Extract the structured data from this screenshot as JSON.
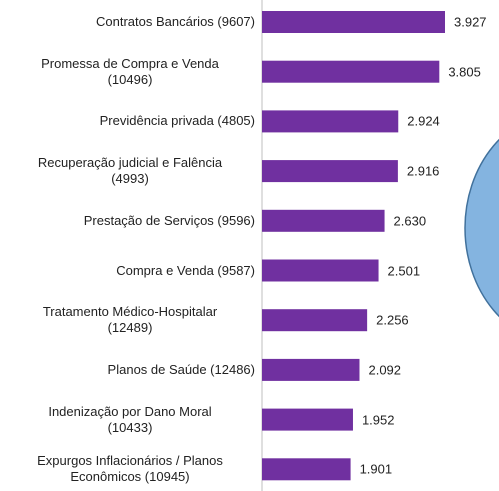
{
  "chart_data": {
    "type": "hbar",
    "categories": [
      "Contratos Bancários (9607)",
      "Promessa de Compra e Venda\n(10496)",
      "Previdência privada (4805)",
      "Recuperação judicial e Falência\n(4993)",
      "Prestação de Serviços (9596)",
      "Compra e Venda (9587)",
      "Tratamento Médico-Hospitalar\n(12489)",
      "Planos de Saúde (12486)",
      "Indenização por Dano Moral\n(10433)",
      "Expurgos Inflacionários / Planos\nEconômicos (10945)"
    ],
    "values": [
      3.927,
      3.805,
      2.924,
      2.916,
      2.63,
      2.501,
      2.256,
      2.092,
      1.952,
      1.901
    ],
    "value_labels": [
      "3.927",
      "3.805",
      "2.924",
      "2.916",
      "2.630",
      "2.501",
      "2.256",
      "2.092",
      "1.952",
      "1.901"
    ],
    "color": "#7030a0"
  }
}
